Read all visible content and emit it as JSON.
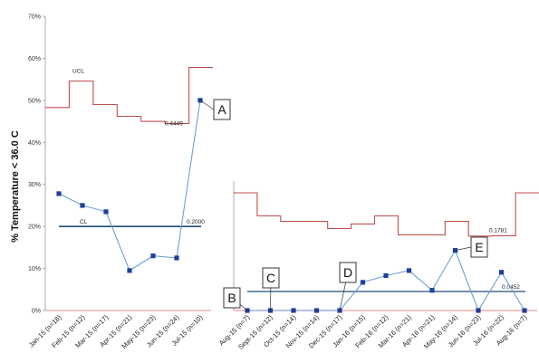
{
  "chart_data": {
    "type": "line",
    "title": "",
    "xlabel": "",
    "ylabel": "% Temperature < 36.0 C",
    "ylim": [
      0,
      70
    ],
    "yticks": [
      "0%",
      "10%",
      "20%",
      "30%",
      "40%",
      "50%",
      "60%",
      "70%"
    ],
    "categories": [
      "Jan-15 (n=18)",
      "Feb-15 (n=12)",
      "Mar-15 (n=17)",
      "Apr-15 (n=21)",
      "May-15 (n=23)",
      "Jun-15 (n=24)",
      "Jul-15 (n=10)",
      "Aug-15 (n=7)",
      "Sept-15 (n=12)",
      "Oct-15 (n=14)",
      "Nov-15 (n=14)",
      "Dec-15 (n=17)",
      "Jan-16 (n=15)",
      "Feb-16 (n=12)",
      "Mar-16 (n=21)",
      "Apr-16 (n=21)",
      "May-16 (n=14)",
      "Jun-16 (n=23)",
      "Jul-16 (n=22)",
      "Aug-16 (n=7)"
    ],
    "series": [
      {
        "name": "",
        "color": "#4f81bd",
        "values": [
          27.8,
          25.0,
          23.5,
          9.5,
          13.0,
          12.5,
          50.0,
          0,
          0,
          0,
          0,
          0,
          6.7,
          8.3,
          9.5,
          4.8,
          14.3,
          0,
          9.1,
          0
        ]
      }
    ],
    "control_limits": {
      "color": "#c0504d",
      "ucl_label": "UCL",
      "phase1_ucl": [
        48.3,
        54.6,
        49.0,
        46.2,
        45.0,
        44.5,
        57.8
      ],
      "phase2_ucl": [
        28.0,
        22.5,
        21.2,
        21.2,
        19.5,
        20.6,
        22.5,
        18.0,
        18.0,
        21.2,
        17.7,
        17.8,
        28.0
      ]
    },
    "center_lines": {
      "color": "#1f4e79",
      "cl_label": "CL",
      "phase1_cl": 20.0,
      "phase1_cl_label": "0.2000",
      "phase2_cl": 4.52,
      "phase2_cl_label": "0.0452",
      "phase1_ucl_label": "0.4449",
      "phase2_ucl_label": "0.1781"
    },
    "lcl": {
      "value": 0,
      "color": "#e6a0a0"
    },
    "annotations": [
      {
        "label": "A",
        "category_index": 6,
        "value": 50.0
      },
      {
        "label": "B",
        "category_index": 7,
        "value": 0
      },
      {
        "label": "C",
        "category_index": 8,
        "value": 0
      },
      {
        "label": "D",
        "category_index": 11,
        "value": 0
      },
      {
        "label": "E",
        "category_index": 16,
        "value": 14.3
      }
    ],
    "grid": false,
    "legend": "none"
  }
}
